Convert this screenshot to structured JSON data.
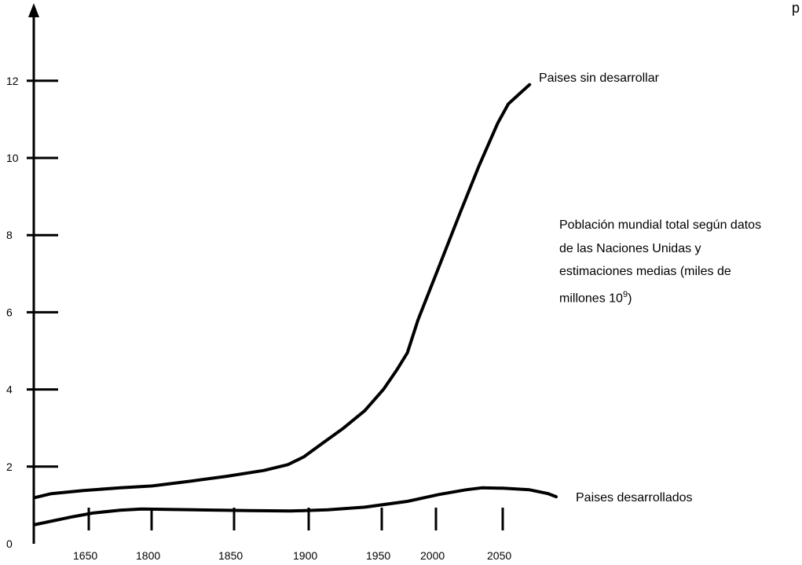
{
  "chart_data": {
    "type": "line",
    "ylim": [
      0,
      12
    ],
    "y_ticks": [
      "0",
      "2",
      "4",
      "6",
      "8",
      "10",
      "12"
    ],
    "x_tick_labels": [
      "1650",
      "1800",
      "1850",
      "1900",
      "1950",
      "2000",
      "2050"
    ],
    "series": [
      {
        "name": "Paises sin desarrollar",
        "color": "#000000",
        "points": [
          [
            0.0,
            1.2
          ],
          [
            0.3,
            1.3
          ],
          [
            0.9,
            1.38
          ],
          [
            1.6,
            1.45
          ],
          [
            2.2,
            1.5
          ],
          [
            2.9,
            1.62
          ],
          [
            3.6,
            1.75
          ],
          [
            4.3,
            1.9
          ],
          [
            4.75,
            2.05
          ],
          [
            5.05,
            2.25
          ],
          [
            5.4,
            2.6
          ],
          [
            5.8,
            3.0
          ],
          [
            6.2,
            3.45
          ],
          [
            6.55,
            4.0
          ],
          [
            6.8,
            4.5
          ],
          [
            7.0,
            4.95
          ],
          [
            7.2,
            5.8
          ],
          [
            7.6,
            7.2
          ],
          [
            8.0,
            8.6
          ],
          [
            8.35,
            9.8
          ],
          [
            8.7,
            10.9
          ],
          [
            8.9,
            11.4
          ],
          [
            9.1,
            11.65
          ],
          [
            9.3,
            11.9
          ]
        ]
      },
      {
        "name": "Paises desarrollados",
        "color": "#000000",
        "points": [
          [
            0.0,
            0.5
          ],
          [
            0.7,
            0.7
          ],
          [
            1.1,
            0.8
          ],
          [
            1.6,
            0.87
          ],
          [
            2.0,
            0.9
          ],
          [
            3.0,
            0.88
          ],
          [
            4.0,
            0.86
          ],
          [
            4.8,
            0.85
          ],
          [
            5.5,
            0.88
          ],
          [
            6.2,
            0.95
          ],
          [
            7.0,
            1.1
          ],
          [
            7.6,
            1.28
          ],
          [
            8.1,
            1.4
          ],
          [
            8.4,
            1.45
          ],
          [
            8.8,
            1.44
          ],
          [
            9.3,
            1.4
          ],
          [
            9.65,
            1.3
          ],
          [
            9.8,
            1.22
          ]
        ]
      }
    ],
    "annotation_lines": [
      "Población mundial total según datos",
      "de las Naciones Unidas y",
      "estimaciones medias (miles de",
      "millones 10"
    ],
    "annotation_sup": "9",
    "annotation_close": ")"
  },
  "corner_glyph": "p"
}
